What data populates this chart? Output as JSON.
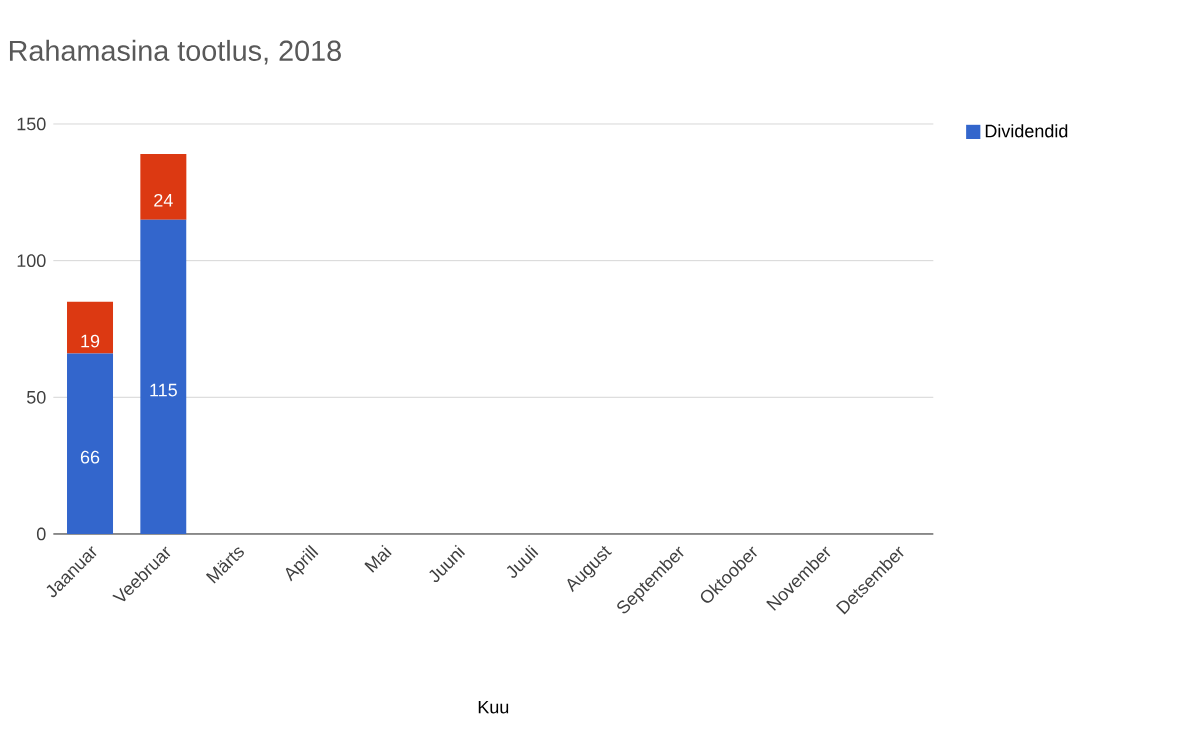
{
  "chart_data": {
    "type": "bar",
    "title": "Rahamasina tootlus, 2018",
    "xlabel": "Kuu",
    "categories": [
      "Jaanuar",
      "Veebruar",
      "Märts",
      "Aprill",
      "Mai",
      "Juuni",
      "Juuli",
      "August",
      "September",
      "Oktoober",
      "November",
      "Detsember"
    ],
    "series": [
      {
        "name": "Dividendid",
        "color": "#3366cc",
        "values": [
          66,
          115,
          null,
          null,
          null,
          null,
          null,
          null,
          null,
          null,
          null,
          null
        ]
      },
      {
        "color": "#dc3912",
        "values": [
          19,
          24,
          null,
          null,
          null,
          null,
          null,
          null,
          null,
          null,
          null,
          null
        ]
      }
    ],
    "stacked": true,
    "data_labels": true,
    "ylim": [
      0,
      150
    ],
    "yticks": [
      0,
      50,
      100,
      150
    ],
    "grid": "y",
    "legend": "top right"
  }
}
